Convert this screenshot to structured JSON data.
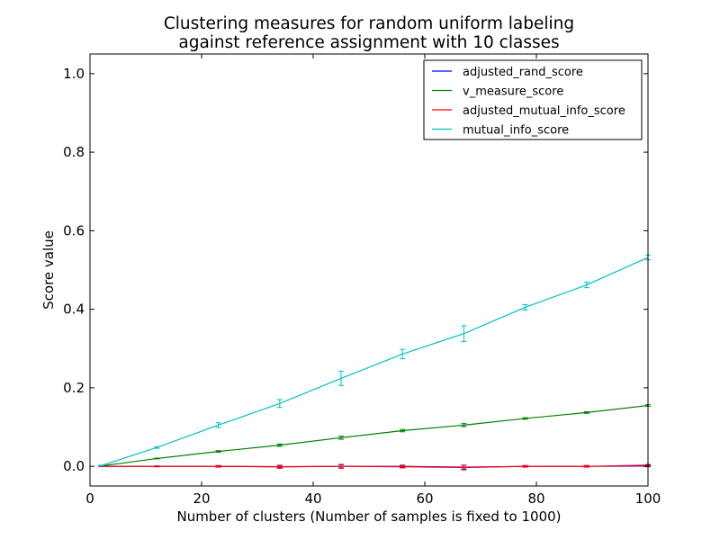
{
  "chart_data": {
    "type": "line",
    "title": [
      "Clustering measures for random uniform labeling",
      "against reference assignment with 10 classes"
    ],
    "xlabel": "Number of clusters (Number of samples is fixed to 1000)",
    "ylabel": "Score value",
    "xlim": [
      0,
      100
    ],
    "ylim": [
      -0.05,
      1.05
    ],
    "xticks": [
      0,
      20,
      40,
      60,
      80,
      100
    ],
    "xtick_labels": [
      "0",
      "20",
      "40",
      "60",
      "80",
      "100"
    ],
    "yticks": [
      0.0,
      0.2,
      0.4,
      0.6,
      0.8,
      1.0
    ],
    "ytick_labels": [
      "0.0",
      "0.2",
      "0.4",
      "0.6",
      "0.8",
      "1.0"
    ],
    "grid": false,
    "legend_position": "top-right",
    "x": [
      2,
      12,
      23,
      34,
      45,
      56,
      67,
      78,
      89,
      100
    ],
    "series": [
      {
        "name": "adjusted_rand_score",
        "color": "#0000ff",
        "values": [
          0.0,
          0.0,
          0.0,
          -0.001,
          0.0,
          0.0,
          -0.002,
          0.0,
          0.0,
          0.001
        ],
        "errors": [
          0.0005,
          0.001,
          0.002,
          0.003,
          0.004,
          0.003,
          0.005,
          0.002,
          0.002,
          0.002
        ]
      },
      {
        "name": "v_measure_score",
        "color": "#008000",
        "values": [
          0.001,
          0.02,
          0.038,
          0.054,
          0.073,
          0.091,
          0.105,
          0.122,
          0.137,
          0.155
        ],
        "errors": [
          0.0005,
          0.001,
          0.002,
          0.003,
          0.004,
          0.003,
          0.004,
          0.002,
          0.002,
          0.002
        ]
      },
      {
        "name": "adjusted_mutual_info_score",
        "color": "#ff0000",
        "values": [
          0.0,
          0.0,
          0.0,
          -0.001,
          0.0,
          -0.001,
          -0.003,
          0.0,
          0.0,
          0.003
        ],
        "errors": [
          0.0005,
          0.001,
          0.002,
          0.004,
          0.005,
          0.003,
          0.006,
          0.002,
          0.002,
          0.002
        ]
      },
      {
        "name": "mutual_info_score",
        "color": "#00bfbf",
        "values": [
          0.002,
          0.048,
          0.105,
          0.16,
          0.224,
          0.286,
          0.338,
          0.405,
          0.462,
          0.532
        ],
        "errors": [
          0.001,
          0.002,
          0.006,
          0.01,
          0.018,
          0.012,
          0.02,
          0.007,
          0.007,
          0.006
        ]
      }
    ]
  }
}
